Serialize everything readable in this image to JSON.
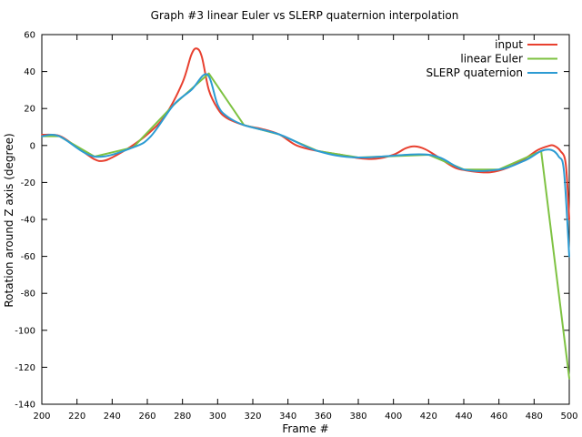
{
  "chart_data": {
    "type": "line",
    "title": "Graph #3 linear Euler vs SLERP quaternion interpolation",
    "xlabel": "Frame #",
    "ylabel": "Rotation around Z axis (degree)",
    "xlim": [
      200,
      500
    ],
    "ylim": [
      -140,
      60
    ],
    "x_ticks": [
      200,
      220,
      240,
      260,
      280,
      300,
      320,
      340,
      360,
      380,
      400,
      420,
      440,
      460,
      480,
      500
    ],
    "y_ticks": [
      -140,
      -120,
      -100,
      -80,
      -60,
      -40,
      -20,
      0,
      20,
      40,
      60
    ],
    "grid": false,
    "legend_position": "top-right",
    "series": [
      {
        "name": "input",
        "color": "#e8402f",
        "points": [
          [
            200,
            5.8
          ],
          [
            210,
            5.2
          ],
          [
            220,
            -1
          ],
          [
            230,
            -7.5
          ],
          [
            235,
            -8.3
          ],
          [
            240,
            -6.5
          ],
          [
            250,
            -1
          ],
          [
            260,
            6
          ],
          [
            270,
            16
          ],
          [
            280,
            34
          ],
          [
            285,
            49
          ],
          [
            288,
            52.5
          ],
          [
            291,
            48
          ],
          [
            295,
            30
          ],
          [
            300,
            20
          ],
          [
            305,
            15
          ],
          [
            315,
            11
          ],
          [
            325,
            9
          ],
          [
            335,
            6
          ],
          [
            345,
            0
          ],
          [
            357,
            -3
          ],
          [
            370,
            -5
          ],
          [
            380,
            -6.8
          ],
          [
            390,
            -7.2
          ],
          [
            400,
            -5
          ],
          [
            407,
            -1.5
          ],
          [
            412,
            -0.5
          ],
          [
            418,
            -2
          ],
          [
            425,
            -6
          ],
          [
            435,
            -12
          ],
          [
            445,
            -14
          ],
          [
            455,
            -14.5
          ],
          [
            465,
            -12
          ],
          [
            475,
            -7
          ],
          [
            482,
            -2.5
          ],
          [
            488,
            -0.3
          ],
          [
            491,
            0
          ],
          [
            495,
            -3
          ],
          [
            498,
            -10
          ],
          [
            500,
            -40
          ]
        ]
      },
      {
        "name": "linear Euler",
        "color": "#7ec242",
        "points": [
          [
            200,
            5
          ],
          [
            210,
            5
          ],
          [
            230,
            -6
          ],
          [
            252,
            -1
          ],
          [
            275,
            22
          ],
          [
            295,
            39
          ],
          [
            315,
            11
          ],
          [
            335,
            6
          ],
          [
            357,
            -3
          ],
          [
            380,
            -6.5
          ],
          [
            420,
            -5
          ],
          [
            440,
            -13
          ],
          [
            460,
            -13
          ],
          [
            484,
            -3
          ],
          [
            500,
            -126
          ]
        ]
      },
      {
        "name": "SLERP quaternion",
        "color": "#2c9bd3",
        "points": [
          [
            200,
            5
          ],
          [
            210,
            5
          ],
          [
            230,
            -6
          ],
          [
            252,
            -1
          ],
          [
            262,
            5
          ],
          [
            275,
            22
          ],
          [
            285,
            30
          ],
          [
            294,
            38.5
          ],
          [
            300,
            22
          ],
          [
            305,
            16
          ],
          [
            315,
            11
          ],
          [
            335,
            6
          ],
          [
            357,
            -3
          ],
          [
            380,
            -6.5
          ],
          [
            420,
            -5
          ],
          [
            440,
            -13
          ],
          [
            460,
            -13
          ],
          [
            475,
            -8
          ],
          [
            484,
            -3
          ],
          [
            490,
            -2.5
          ],
          [
            494,
            -6
          ],
          [
            497,
            -14
          ],
          [
            500,
            -60
          ]
        ]
      }
    ]
  }
}
